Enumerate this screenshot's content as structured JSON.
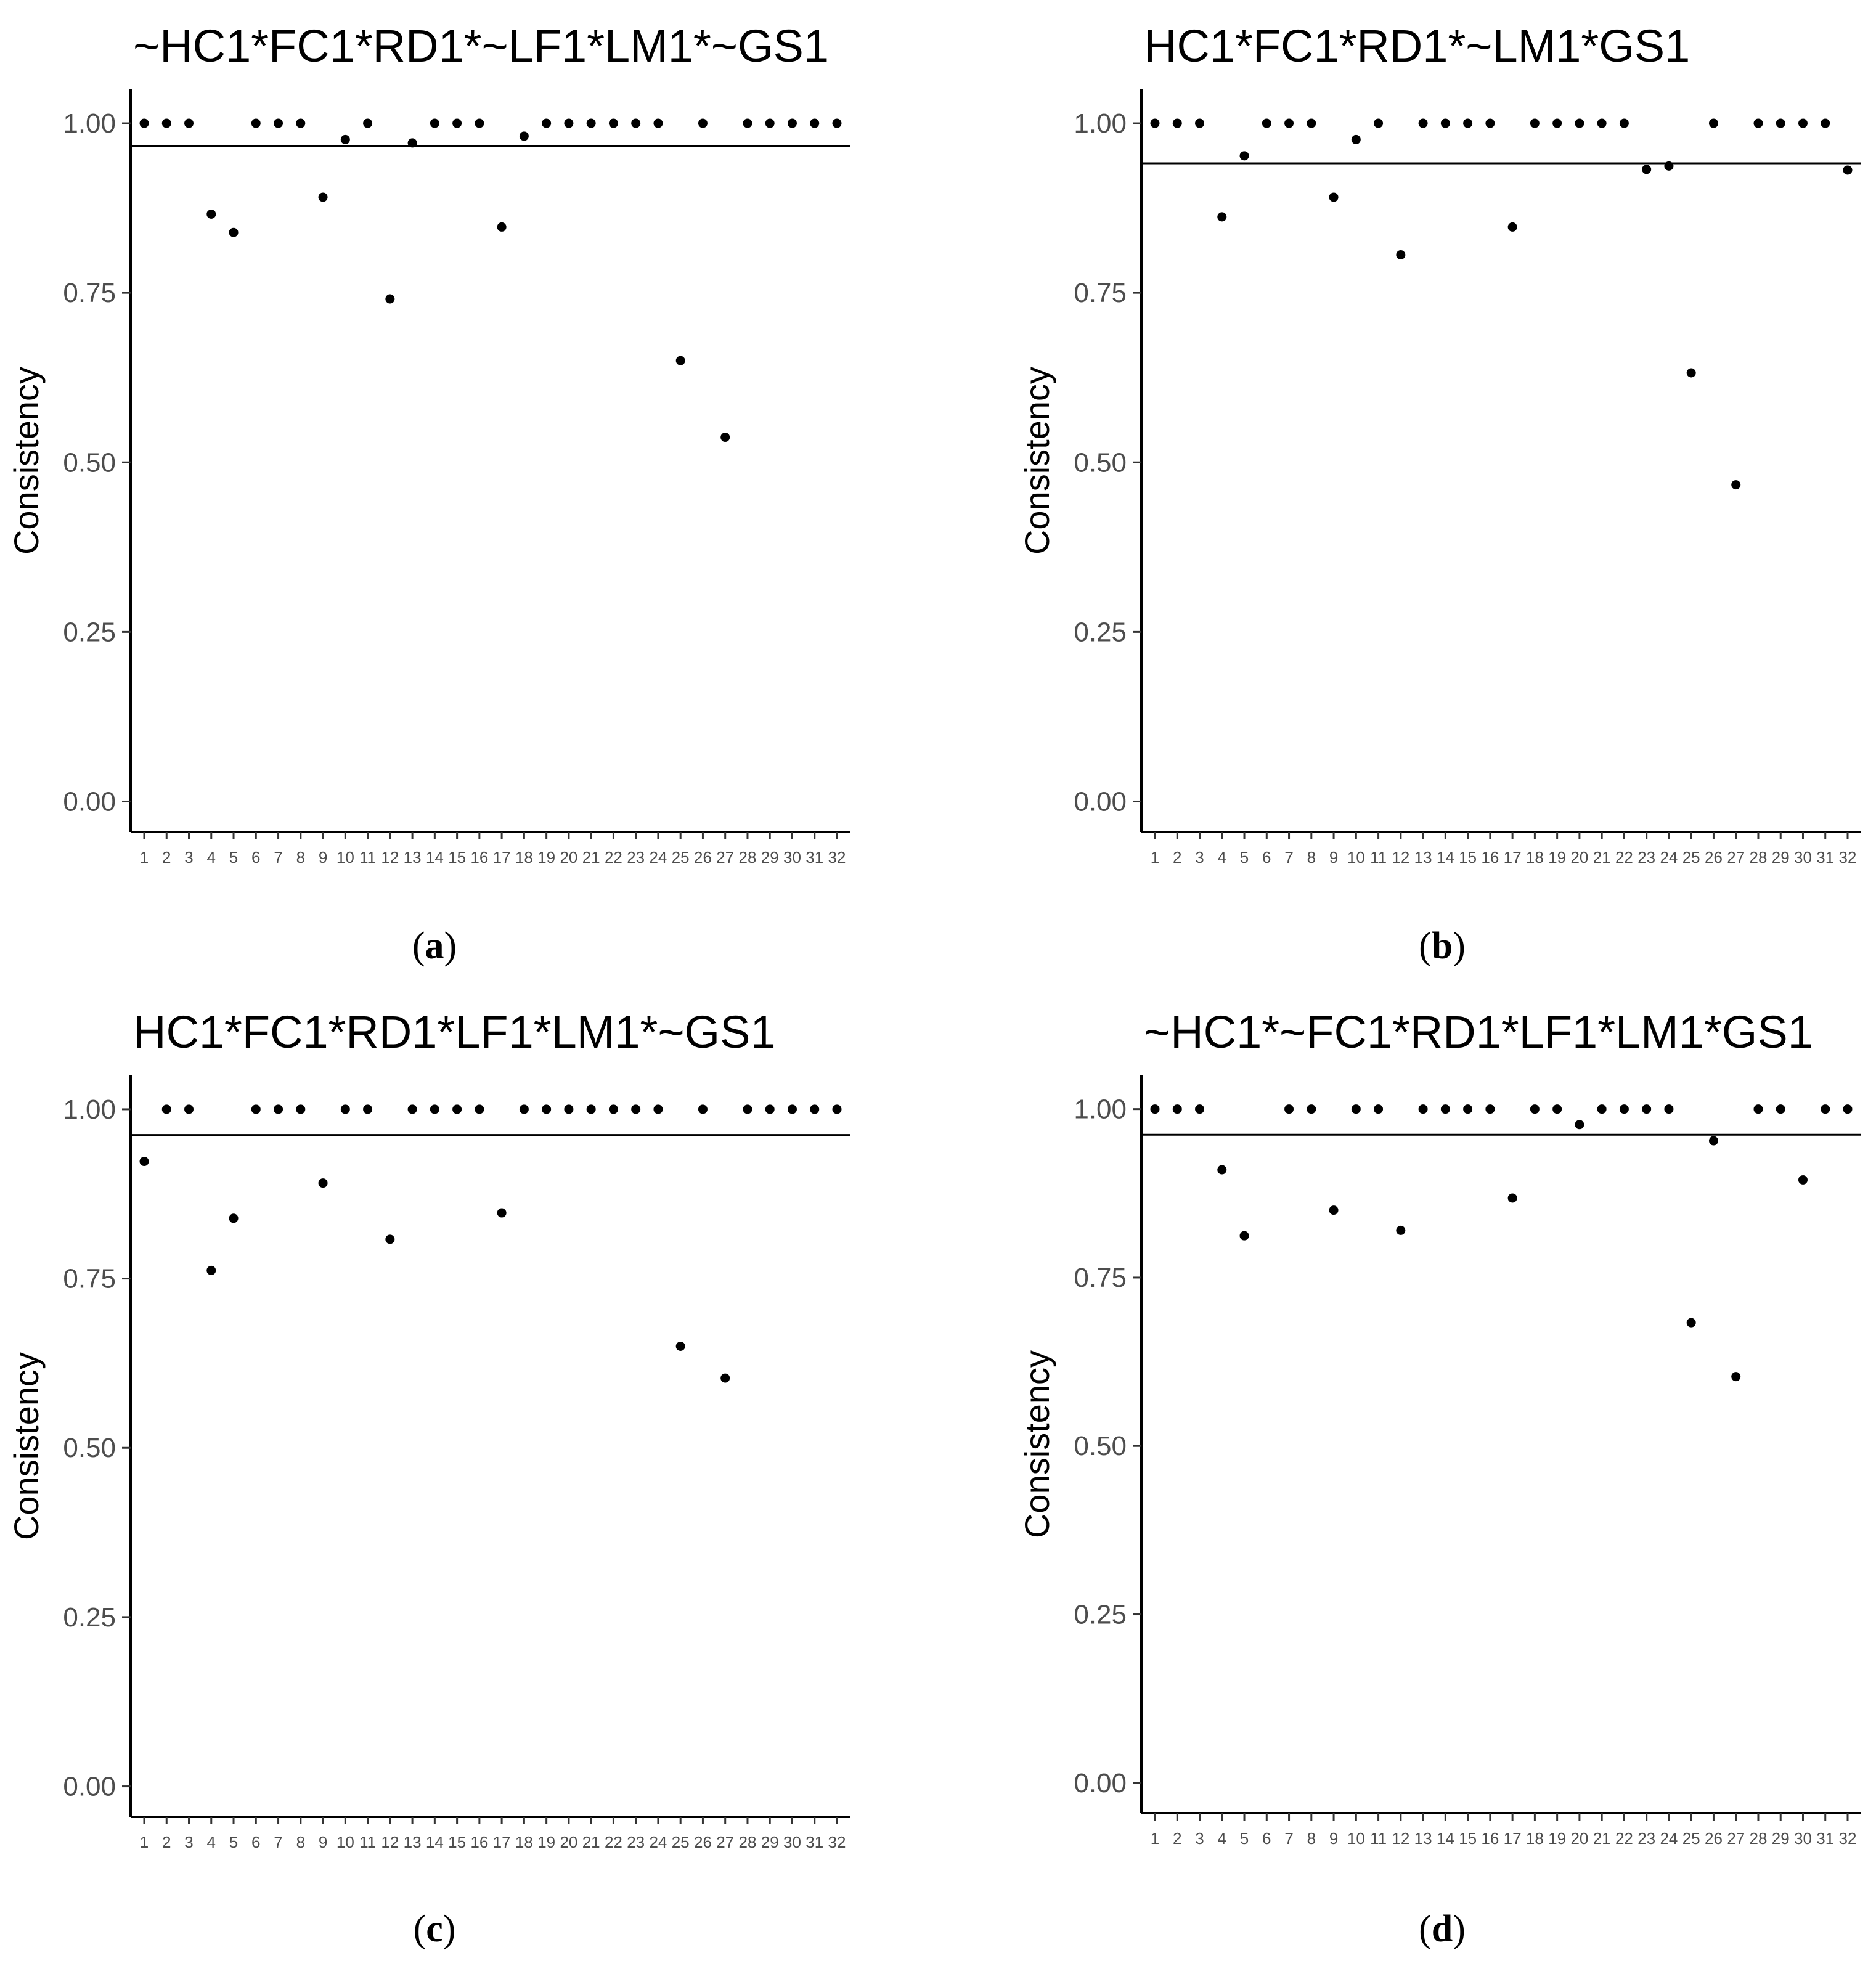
{
  "chart_data": [
    {
      "type": "scatter",
      "panel_label": "a",
      "title": "~HC1*FC1*RD1*~LF1*LM1*~GS1",
      "xlabel": "",
      "ylabel": "Consistency",
      "x": [
        "1",
        "2",
        "3",
        "4",
        "5",
        "6",
        "7",
        "8",
        "9",
        "10",
        "11",
        "12",
        "13",
        "14",
        "15",
        "16",
        "17",
        "18",
        "19",
        "20",
        "21",
        "22",
        "23",
        "24",
        "25",
        "26",
        "27",
        "28",
        "29",
        "30",
        "31",
        "32"
      ],
      "values": [
        1.0,
        1.0,
        1.0,
        0.866,
        0.839,
        1.0,
        1.0,
        1.0,
        0.891,
        0.976,
        1.0,
        0.741,
        0.971,
        1.0,
        1.0,
        1.0,
        0.847,
        0.981,
        1.0,
        1.0,
        1.0,
        1.0,
        1.0,
        1.0,
        0.65,
        1.0,
        0.537,
        1.0,
        1.0,
        1.0,
        1.0,
        1.0
      ],
      "reference_line": 0.966,
      "ylim": [
        -0.045,
        1.05
      ],
      "yticks": [
        "0.00",
        "0.25",
        "0.50",
        "0.75",
        "1.00"
      ],
      "grid": false
    },
    {
      "type": "scatter",
      "panel_label": "b",
      "title": "HC1*FC1*RD1*~LM1*GS1",
      "xlabel": "",
      "ylabel": "Consistency",
      "x": [
        "1",
        "2",
        "3",
        "4",
        "5",
        "6",
        "7",
        "8",
        "9",
        "10",
        "11",
        "12",
        "13",
        "14",
        "15",
        "16",
        "17",
        "18",
        "19",
        "20",
        "21",
        "22",
        "23",
        "24",
        "25",
        "26",
        "27",
        "28",
        "29",
        "30",
        "31",
        "32"
      ],
      "values": [
        1.0,
        1.0,
        1.0,
        0.862,
        0.952,
        1.0,
        1.0,
        1.0,
        0.891,
        0.976,
        1.0,
        0.806,
        1.0,
        1.0,
        1.0,
        1.0,
        0.847,
        1.0,
        1.0,
        1.0,
        1.0,
        1.0,
        0.932,
        0.937,
        0.632,
        1.0,
        0.467,
        1.0,
        1.0,
        1.0,
        1.0,
        0.931
      ],
      "reference_line": 0.941,
      "ylim": [
        -0.045,
        1.05
      ],
      "yticks": [
        "0.00",
        "0.25",
        "0.50",
        "0.75",
        "1.00"
      ],
      "grid": false
    },
    {
      "type": "scatter",
      "panel_label": "c",
      "title": "HC1*FC1*RD1*LF1*LM1*~GS1",
      "xlabel": "",
      "ylabel": "Consistency",
      "x": [
        "1",
        "2",
        "3",
        "4",
        "5",
        "6",
        "7",
        "8",
        "9",
        "10",
        "11",
        "12",
        "13",
        "14",
        "15",
        "16",
        "17",
        "18",
        "19",
        "20",
        "21",
        "22",
        "23",
        "24",
        "25",
        "26",
        "27",
        "28",
        "29",
        "30",
        "31",
        "32"
      ],
      "values": [
        0.923,
        1.0,
        1.0,
        0.762,
        0.839,
        1.0,
        1.0,
        1.0,
        0.891,
        1.0,
        1.0,
        0.808,
        1.0,
        1.0,
        1.0,
        1.0,
        0.847,
        1.0,
        1.0,
        1.0,
        1.0,
        1.0,
        1.0,
        1.0,
        0.65,
        1.0,
        0.603,
        1.0,
        1.0,
        1.0,
        1.0,
        1.0
      ],
      "reference_line": 0.962,
      "ylim": [
        -0.045,
        1.05
      ],
      "yticks": [
        "0.00",
        "0.25",
        "0.50",
        "0.75",
        "1.00"
      ],
      "grid": false
    },
    {
      "type": "scatter",
      "panel_label": "d",
      "title": "~HC1*~FC1*RD1*LF1*LM1*GS1",
      "xlabel": "",
      "ylabel": "Consistency",
      "x": [
        "1",
        "2",
        "3",
        "4",
        "5",
        "6",
        "7",
        "8",
        "9",
        "10",
        "11",
        "12",
        "13",
        "14",
        "15",
        "16",
        "17",
        "18",
        "19",
        "20",
        "21",
        "22",
        "23",
        "24",
        "25",
        "26",
        "27",
        "28",
        "29",
        "30",
        "31",
        "32"
      ],
      "values": [
        1.0,
        1.0,
        1.0,
        0.91,
        0.812,
        null,
        1.0,
        1.0,
        0.85,
        1.0,
        1.0,
        0.82,
        1.0,
        1.0,
        1.0,
        1.0,
        0.868,
        1.0,
        1.0,
        0.977,
        1.0,
        1.0,
        1.0,
        1.0,
        0.683,
        0.953,
        0.603,
        1.0,
        1.0,
        0.895,
        1.0,
        1.0
      ],
      "reference_line": 0.962,
      "ylim": [
        -0.045,
        1.05
      ],
      "yticks": [
        "0.00",
        "0.25",
        "0.50",
        "0.75",
        "1.00"
      ],
      "grid": false
    }
  ]
}
